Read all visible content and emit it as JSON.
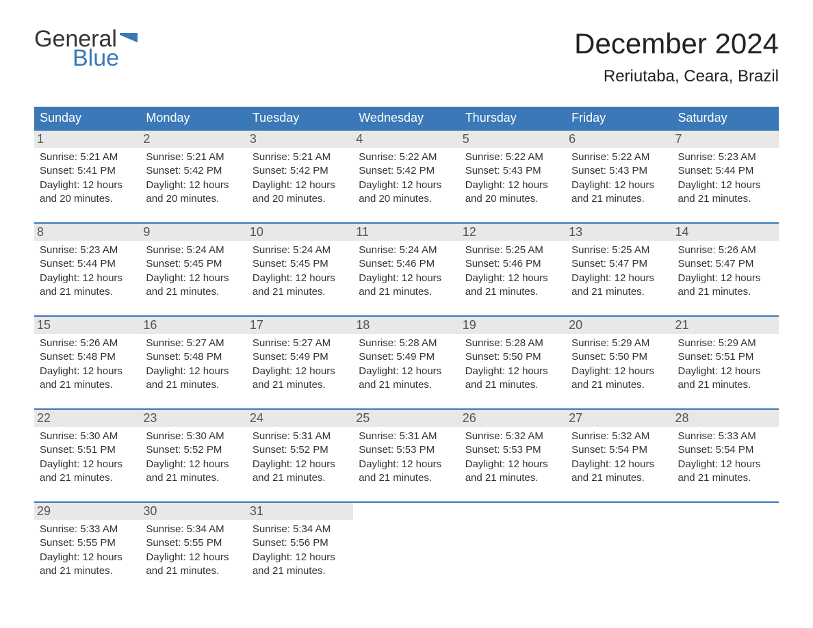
{
  "brand": {
    "general": "General",
    "blue": "Blue"
  },
  "title": "December 2024",
  "location": "Reriutaba, Ceara, Brazil",
  "colors": {
    "header_bg": "#3a78b8",
    "header_text": "#ffffff",
    "daynum_bg": "#e8e8e8",
    "daynum_text": "#555555",
    "body_text": "#333333",
    "page_bg": "#ffffff",
    "accent_rule": "#3a78b8"
  },
  "typography": {
    "title_fontsize": 42,
    "location_fontsize": 24,
    "dow_fontsize": 18,
    "daynum_fontsize": 18,
    "body_fontsize": 15,
    "font_family": "Arial"
  },
  "days_of_week": [
    "Sunday",
    "Monday",
    "Tuesday",
    "Wednesday",
    "Thursday",
    "Friday",
    "Saturday"
  ],
  "labels": {
    "sunrise": "Sunrise:",
    "sunset": "Sunset:",
    "daylight": "Daylight:"
  },
  "calendar": {
    "type": "calendar-table",
    "columns": 7,
    "weeks": [
      [
        {
          "n": "1",
          "sunrise": "5:21 AM",
          "sunset": "5:41 PM",
          "daylight": "12 hours and 20 minutes."
        },
        {
          "n": "2",
          "sunrise": "5:21 AM",
          "sunset": "5:42 PM",
          "daylight": "12 hours and 20 minutes."
        },
        {
          "n": "3",
          "sunrise": "5:21 AM",
          "sunset": "5:42 PM",
          "daylight": "12 hours and 20 minutes."
        },
        {
          "n": "4",
          "sunrise": "5:22 AM",
          "sunset": "5:42 PM",
          "daylight": "12 hours and 20 minutes."
        },
        {
          "n": "5",
          "sunrise": "5:22 AM",
          "sunset": "5:43 PM",
          "daylight": "12 hours and 20 minutes."
        },
        {
          "n": "6",
          "sunrise": "5:22 AM",
          "sunset": "5:43 PM",
          "daylight": "12 hours and 21 minutes."
        },
        {
          "n": "7",
          "sunrise": "5:23 AM",
          "sunset": "5:44 PM",
          "daylight": "12 hours and 21 minutes."
        }
      ],
      [
        {
          "n": "8",
          "sunrise": "5:23 AM",
          "sunset": "5:44 PM",
          "daylight": "12 hours and 21 minutes."
        },
        {
          "n": "9",
          "sunrise": "5:24 AM",
          "sunset": "5:45 PM",
          "daylight": "12 hours and 21 minutes."
        },
        {
          "n": "10",
          "sunrise": "5:24 AM",
          "sunset": "5:45 PM",
          "daylight": "12 hours and 21 minutes."
        },
        {
          "n": "11",
          "sunrise": "5:24 AM",
          "sunset": "5:46 PM",
          "daylight": "12 hours and 21 minutes."
        },
        {
          "n": "12",
          "sunrise": "5:25 AM",
          "sunset": "5:46 PM",
          "daylight": "12 hours and 21 minutes."
        },
        {
          "n": "13",
          "sunrise": "5:25 AM",
          "sunset": "5:47 PM",
          "daylight": "12 hours and 21 minutes."
        },
        {
          "n": "14",
          "sunrise": "5:26 AM",
          "sunset": "5:47 PM",
          "daylight": "12 hours and 21 minutes."
        }
      ],
      [
        {
          "n": "15",
          "sunrise": "5:26 AM",
          "sunset": "5:48 PM",
          "daylight": "12 hours and 21 minutes."
        },
        {
          "n": "16",
          "sunrise": "5:27 AM",
          "sunset": "5:48 PM",
          "daylight": "12 hours and 21 minutes."
        },
        {
          "n": "17",
          "sunrise": "5:27 AM",
          "sunset": "5:49 PM",
          "daylight": "12 hours and 21 minutes."
        },
        {
          "n": "18",
          "sunrise": "5:28 AM",
          "sunset": "5:49 PM",
          "daylight": "12 hours and 21 minutes."
        },
        {
          "n": "19",
          "sunrise": "5:28 AM",
          "sunset": "5:50 PM",
          "daylight": "12 hours and 21 minutes."
        },
        {
          "n": "20",
          "sunrise": "5:29 AM",
          "sunset": "5:50 PM",
          "daylight": "12 hours and 21 minutes."
        },
        {
          "n": "21",
          "sunrise": "5:29 AM",
          "sunset": "5:51 PM",
          "daylight": "12 hours and 21 minutes."
        }
      ],
      [
        {
          "n": "22",
          "sunrise": "5:30 AM",
          "sunset": "5:51 PM",
          "daylight": "12 hours and 21 minutes."
        },
        {
          "n": "23",
          "sunrise": "5:30 AM",
          "sunset": "5:52 PM",
          "daylight": "12 hours and 21 minutes."
        },
        {
          "n": "24",
          "sunrise": "5:31 AM",
          "sunset": "5:52 PM",
          "daylight": "12 hours and 21 minutes."
        },
        {
          "n": "25",
          "sunrise": "5:31 AM",
          "sunset": "5:53 PM",
          "daylight": "12 hours and 21 minutes."
        },
        {
          "n": "26",
          "sunrise": "5:32 AM",
          "sunset": "5:53 PM",
          "daylight": "12 hours and 21 minutes."
        },
        {
          "n": "27",
          "sunrise": "5:32 AM",
          "sunset": "5:54 PM",
          "daylight": "12 hours and 21 minutes."
        },
        {
          "n": "28",
          "sunrise": "5:33 AM",
          "sunset": "5:54 PM",
          "daylight": "12 hours and 21 minutes."
        }
      ],
      [
        {
          "n": "29",
          "sunrise": "5:33 AM",
          "sunset": "5:55 PM",
          "daylight": "12 hours and 21 minutes."
        },
        {
          "n": "30",
          "sunrise": "5:34 AM",
          "sunset": "5:55 PM",
          "daylight": "12 hours and 21 minutes."
        },
        {
          "n": "31",
          "sunrise": "5:34 AM",
          "sunset": "5:56 PM",
          "daylight": "12 hours and 21 minutes."
        },
        null,
        null,
        null,
        null
      ]
    ]
  }
}
